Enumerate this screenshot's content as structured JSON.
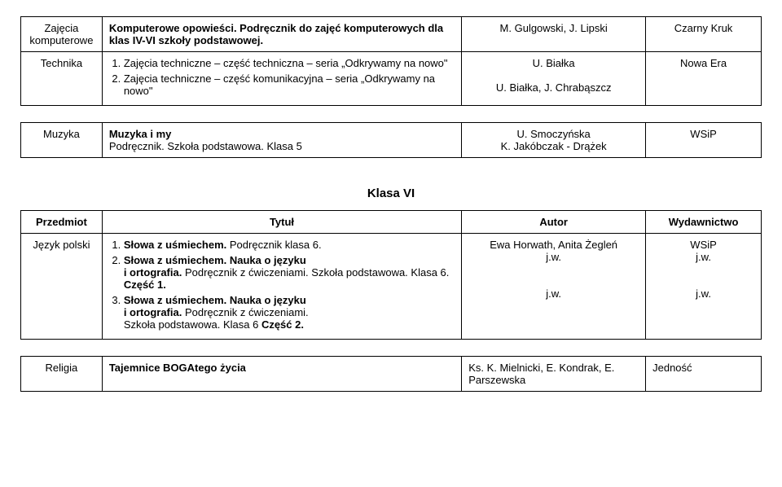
{
  "topRows": [
    {
      "subject": "Zajęcia komputerowe",
      "subjectAlign": "center",
      "titleHtml": "<span class='bold'>Komputerowe opowieści. Podręcznik do zajęć komputerowych dla klas IV-VI szkoły podstawowej.</span>",
      "author": "M. Gulgowski, J. Lipski",
      "authorAlign": "center",
      "pub": "Czarny Kruk",
      "pubAlign": "center"
    },
    {
      "subject": "Technika",
      "subjectAlign": "center",
      "titleHtml": "<ol class='tight'><li>Zajęcia techniczne – część techniczna – seria „Odkrywamy na nowo\"</li><li>Zajęcia techniczne – część komunikacyjna – seria „Odkrywamy na nowo\"</li></ol>",
      "author": "U. Białka<br><br>U. Białka, J. Chrabąszcz",
      "authorAlign": "center",
      "pub": "Nowa Era",
      "pubAlign": "center"
    }
  ],
  "topRow2": {
    "subject": "Muzyka",
    "subjectAlign": "center",
    "titleHtml": "<span class='bold'>Muzyka i my</span><br>Podręcznik. Szkoła podstawowa. Klasa 5",
    "author": "U. Smoczyńska<br>K. Jakóbczak - Drążek",
    "authorAlign": "center",
    "pub": "WSiP",
    "pubAlign": "center"
  },
  "heading": "Klasa VI",
  "headers": {
    "subject": "Przedmiot",
    "title": "Tytuł",
    "author": "Autor",
    "pub": "Wydawnictwo"
  },
  "row1": {
    "subject": "Język polski",
    "subjectAlign": "center",
    "titleHtml": "<ol class='tight'><li><span class='bold'>Słowa z uśmiechem.</span> Podręcznik klasa 6.</li><li><span class='bold'>Słowa z uśmiechem. Nauka o języku<br>i ortografia.</span> Podręcznik z ćwiczeniami. Szkoła podstawowa. Klasa 6. <span class='bold'>Część 1.</span></li><li><span class='bold'>Słowa z uśmiechem. Nauka o języku<br>i ortografia.</span> Podręcznik z ćwiczeniami.<br>Szkoła podstawowa. Klasa 6 <span class='bold'>Część 2.</span></li></ol>",
    "author": "Ewa Horwath, Anita Żegleń<br>j.w.<br><br><br>j.w.",
    "authorAlign": "center",
    "pub": "WSiP<br>j.w.<br><br><br>j.w.",
    "pubAlign": "center"
  },
  "row2": {
    "subject": "Religia",
    "subjectAlign": "center",
    "titleHtml": "<span class='bold'>Tajemnice BOGAtego życia</span>",
    "author": "Ks. K. Mielnicki, E. Kondrak, E. Parszewska",
    "authorAlign": "left",
    "pub": "Jedność",
    "pubAlign": "left"
  }
}
